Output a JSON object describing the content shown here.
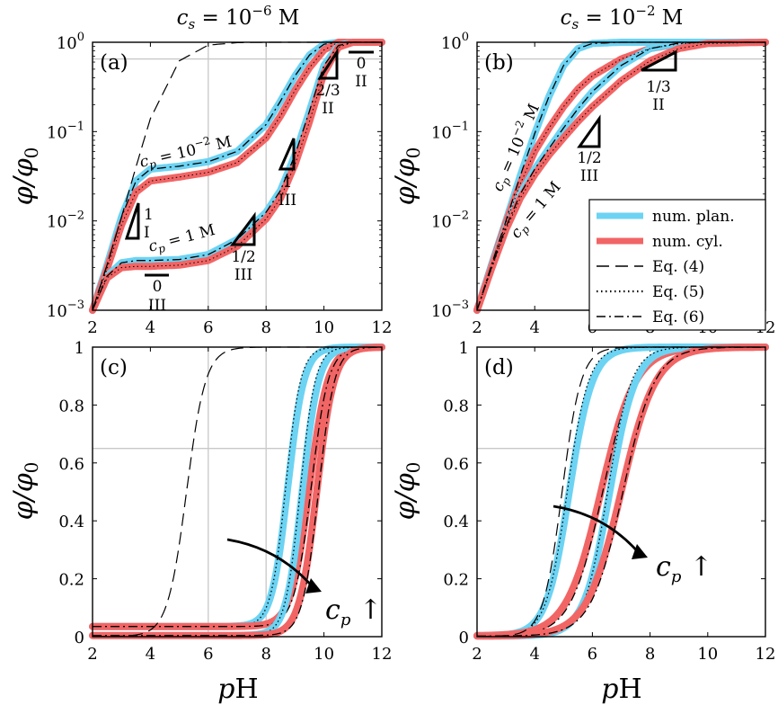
{
  "figure": {
    "column_titles": [
      "c_s = 10^-6 M",
      "c_s = 10^-2 M"
    ],
    "xlabel": "pH",
    "ylabel": "φ/φ0",
    "legend": [
      {
        "label": "num. plan.",
        "color": "#6dd3f3",
        "style": "thick"
      },
      {
        "label": "num. cyl.",
        "color": "#f26565",
        "style": "thick"
      },
      {
        "label": "Eq. (4)",
        "color": "#000000",
        "style": "dashed"
      },
      {
        "label": "Eq. (5)",
        "color": "#000000",
        "style": "dotted"
      },
      {
        "label": "Eq. (6)",
        "color": "#000000",
        "style": "dashdot"
      }
    ]
  },
  "chart_data": [
    {
      "panel": "(a)",
      "type": "line",
      "yscale": "log",
      "xlim": [
        2,
        12
      ],
      "ylim": [
        0.001,
        1
      ],
      "xticks": [
        "2",
        "4",
        "6",
        "8",
        "10",
        "12"
      ],
      "yticks": [
        "10^-3",
        "10^-2",
        "10^-1",
        "10^0"
      ],
      "guides": {
        "vertical_x": [
          6,
          8
        ],
        "horizontal_y": [
          0.65
        ]
      },
      "x": [
        2,
        2.5,
        3,
        3.5,
        4,
        5,
        6,
        7,
        8,
        8.5,
        9,
        9.5,
        10,
        10.5,
        11,
        12
      ],
      "series": [
        {
          "name": "num. plan.",
          "c_p": "10^-2 M",
          "values": [
            0.001,
            0.0032,
            0.011,
            0.028,
            0.038,
            0.041,
            0.046,
            0.06,
            0.12,
            0.22,
            0.42,
            0.72,
            0.95,
            1.0,
            1.0,
            1.0
          ]
        },
        {
          "name": "num. cyl.",
          "c_p": "10^-2 M",
          "values": [
            0.001,
            0.0029,
            0.009,
            0.021,
            0.028,
            0.031,
            0.035,
            0.045,
            0.085,
            0.15,
            0.29,
            0.52,
            0.82,
            1.0,
            1.0,
            1.0
          ]
        },
        {
          "name": "num. plan.",
          "c_p": "1 M",
          "values": [
            0.001,
            0.0024,
            0.0034,
            0.0036,
            0.0036,
            0.0037,
            0.0042,
            0.0062,
            0.0125,
            0.022,
            0.055,
            0.17,
            0.55,
            0.92,
            1.0,
            1.0
          ]
        },
        {
          "name": "num. cyl.",
          "c_p": "1 M",
          "values": [
            0.001,
            0.0023,
            0.003,
            0.0031,
            0.0031,
            0.0032,
            0.0036,
            0.0052,
            0.0105,
            0.018,
            0.043,
            0.13,
            0.45,
            0.88,
            1.0,
            1.0
          ]
        },
        {
          "name": "Eq. (4)",
          "values": [
            0.001,
            0.0032,
            0.011,
            0.04,
            0.14,
            0.62,
            0.93,
            0.99,
            1.0,
            1.0,
            1.0,
            1.0,
            1.0,
            1.0,
            1.0,
            1.0
          ]
        }
      ],
      "annotations": [
        "c_p = 10^-2 M",
        "c_p = 1 M"
      ],
      "slope_labels": [
        "1/I",
        "0/III",
        "1/2/III",
        "1/III",
        "2/3/II",
        "0/II"
      ]
    },
    {
      "panel": "(b)",
      "type": "line",
      "yscale": "log",
      "xlim": [
        2,
        12
      ],
      "ylim": [
        0.001,
        1
      ],
      "xticks": [
        "2",
        "4",
        "6",
        "8",
        "10",
        "12"
      ],
      "yticks": [
        "10^-3",
        "10^-2",
        "10^-1",
        "10^0"
      ],
      "guides": {
        "horizontal_y": [
          0.65
        ]
      },
      "x": [
        2,
        2.5,
        3,
        3.5,
        4,
        4.5,
        5,
        5.5,
        6,
        7,
        8,
        9,
        10,
        12
      ],
      "series": [
        {
          "name": "num. plan.",
          "c_p": "10^-2 M",
          "values": [
            0.001,
            0.0032,
            0.01,
            0.032,
            0.095,
            0.25,
            0.55,
            0.85,
            0.97,
            1.0,
            1.0,
            1.0,
            1.0,
            1.0
          ]
        },
        {
          "name": "num. cyl.",
          "c_p": "10^-2 M",
          "values": [
            0.001,
            0.0031,
            0.0095,
            0.026,
            0.06,
            0.11,
            0.19,
            0.3,
            0.42,
            0.65,
            0.85,
            0.96,
            1.0,
            1.0
          ]
        },
        {
          "name": "num. plan.",
          "c_p": "1 M",
          "values": [
            0.001,
            0.003,
            0.0085,
            0.02,
            0.038,
            0.065,
            0.11,
            0.18,
            0.28,
            0.55,
            0.85,
            0.98,
            1.0,
            1.0
          ]
        },
        {
          "name": "num. cyl.",
          "c_p": "1 M",
          "values": [
            0.001,
            0.0029,
            0.008,
            0.018,
            0.033,
            0.055,
            0.085,
            0.13,
            0.19,
            0.37,
            0.62,
            0.85,
            0.97,
            1.0
          ]
        }
      ],
      "annotations": [
        "c_p = 10^-2 M",
        "c_p = 1 M"
      ],
      "slope_labels": [
        "1/2/III",
        "1/3/II"
      ]
    },
    {
      "panel": "(c)",
      "type": "line",
      "yscale": "linear",
      "xlim": [
        2,
        12
      ],
      "ylim": [
        0,
        1
      ],
      "xticks": [
        "2",
        "4",
        "6",
        "8",
        "10",
        "12"
      ],
      "yticks": [
        "0",
        "0.2",
        "0.4",
        "0.6",
        "0.8",
        "1"
      ],
      "guides": {
        "vertical_x": [
          6,
          8
        ],
        "horizontal_y": [
          0.65
        ]
      },
      "annotation": "c_p ↑",
      "series_params": {
        "num. plan. (10^-2 M)": {
          "midpoint_pH": 8.75,
          "width": 0.28
        },
        "num. cyl. (10^-2 M)": {
          "midpoint_pH": 9.5,
          "width": 0.32
        },
        "num. plan. (1 M)": {
          "midpoint_pH": 9.25,
          "width": 0.28
        },
        "num. cyl. (1 M)": {
          "midpoint_pH": 9.75,
          "width": 0.3
        },
        "Eq. (4)": {
          "midpoint_pH": 5.25,
          "width": 0.33
        }
      }
    },
    {
      "panel": "(d)",
      "type": "line",
      "yscale": "linear",
      "xlim": [
        2,
        12
      ],
      "ylim": [
        0,
        1
      ],
      "xticks": [
        "2",
        "4",
        "6",
        "8",
        "10",
        "12"
      ],
      "yticks": [
        "0",
        "0.2",
        "0.4",
        "0.6",
        "0.8",
        "1"
      ],
      "guides": {
        "horizontal_y": [
          0.65
        ]
      },
      "annotation": "c_p ↑",
      "series_params": {
        "num. plan. (10^-2 M)": {
          "midpoint_pH": 5.2,
          "width": 0.4
        },
        "num. cyl. (10^-2 M)": {
          "midpoint_pH": 6.3,
          "width": 0.6
        },
        "num. plan. (1 M)": {
          "midpoint_pH": 6.6,
          "width": 0.45
        },
        "num. cyl. (1 M)": {
          "midpoint_pH": 7.0,
          "width": 0.6
        },
        "Eq. (4)": {
          "midpoint_pH": 4.95,
          "width": 0.33
        }
      }
    }
  ]
}
